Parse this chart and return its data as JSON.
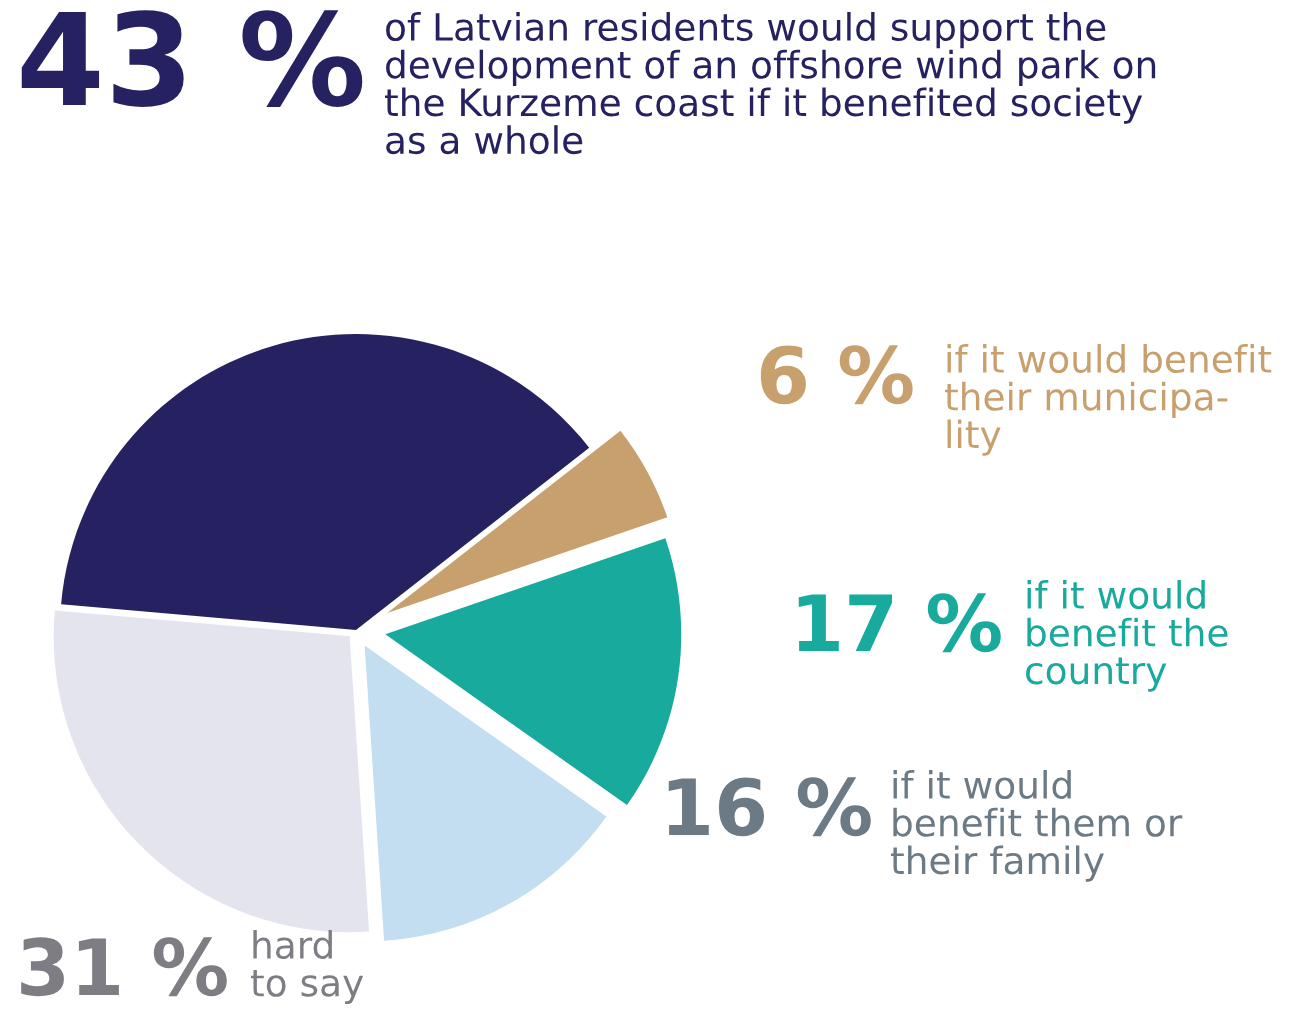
{
  "chart_data": {
    "type": "pie",
    "categories": [
      "of Latvian residents would support the\ndevelopment of an offshore wind park on\nthe Kurzeme coast if it benefited society\nas a whole",
      "if it would benefit\ntheir municipa-\nlity",
      "if it would\nbenefit the\ncountry",
      "if it would\nbenefit them or\ntheir family",
      "hard\nto say"
    ],
    "values": [
      43,
      6,
      17,
      16,
      31
    ],
    "value_labels": [
      "43 %",
      "6 %",
      "17 %",
      "16 %",
      "31 %"
    ],
    "colors": [
      "#262262",
      "#c8a06e",
      "#18aa9c",
      "#c3def0",
      "#e4e4ef"
    ],
    "legend": false
  }
}
